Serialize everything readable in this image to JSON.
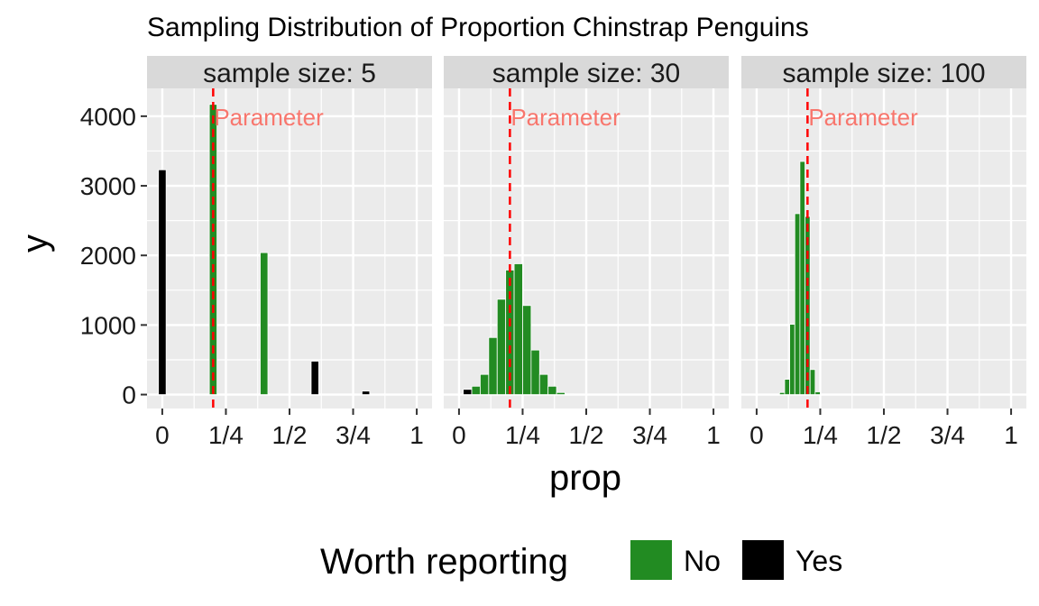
{
  "chart_data": {
    "type": "bar",
    "title": "Sampling Distribution of Proportion Chinstrap Penguins",
    "xlabel": "prop",
    "ylabel": "y",
    "x_ticks": [
      {
        "value": 0,
        "label": "0"
      },
      {
        "value": 0.25,
        "label": "1/4"
      },
      {
        "value": 0.5,
        "label": "1/2"
      },
      {
        "value": 0.75,
        "label": "3/4"
      },
      {
        "value": 1,
        "label": "1"
      }
    ],
    "y_ticks": [
      {
        "value": 0,
        "label": "0"
      },
      {
        "value": 1000,
        "label": "1000"
      },
      {
        "value": 2000,
        "label": "2000"
      },
      {
        "value": 3000,
        "label": "3000"
      },
      {
        "value": 4000,
        "label": "4000"
      }
    ],
    "xlim": [
      -0.06,
      1.06
    ],
    "ylim": [
      -200,
      4400
    ],
    "grid": true,
    "parameter": {
      "value": 0.2,
      "label": "Parameter",
      "color": "#ff0000",
      "label_color": "#f8766d"
    },
    "legend": {
      "title": "Worth reporting",
      "position": "bottom",
      "entries": [
        {
          "label": "No",
          "color": "#228b22"
        },
        {
          "label": "Yes",
          "color": "#000000"
        }
      ]
    },
    "panels": [
      {
        "strip": "sample  size: 5",
        "bar_width": 0.03,
        "bars": [
          {
            "x": 0.0,
            "y": 3230,
            "report": "Yes"
          },
          {
            "x": 0.2,
            "y": 4170,
            "report": "No"
          },
          {
            "x": 0.4,
            "y": 2040,
            "report": "No"
          },
          {
            "x": 0.6,
            "y": 480,
            "report": "Yes"
          },
          {
            "x": 0.8,
            "y": 50,
            "report": "Yes"
          },
          {
            "x": 1.0,
            "y": 3,
            "report": "Yes"
          }
        ]
      },
      {
        "strip": "sample  size: 30",
        "bar_width": 0.0333,
        "bars": [
          {
            "x": 0.0333,
            "y": 75,
            "report": "Yes"
          },
          {
            "x": 0.0667,
            "y": 120,
            "report": "No"
          },
          {
            "x": 0.1,
            "y": 290,
            "report": "No"
          },
          {
            "x": 0.1333,
            "y": 820,
            "report": "No"
          },
          {
            "x": 0.1667,
            "y": 1370,
            "report": "No"
          },
          {
            "x": 0.2,
            "y": 1790,
            "report": "No"
          },
          {
            "x": 0.2333,
            "y": 1880,
            "report": "No"
          },
          {
            "x": 0.2667,
            "y": 1280,
            "report": "No"
          },
          {
            "x": 0.3,
            "y": 640,
            "report": "No"
          },
          {
            "x": 0.3333,
            "y": 290,
            "report": "No"
          },
          {
            "x": 0.3667,
            "y": 120,
            "report": "No"
          },
          {
            "x": 0.4,
            "y": 30,
            "report": "No"
          },
          {
            "x": 0.4333,
            "y": 10,
            "report": "No"
          }
        ]
      },
      {
        "strip": "sample  size: 100",
        "bar_width": 0.02,
        "bars": [
          {
            "x": 0.1,
            "y": 30,
            "report": "No"
          },
          {
            "x": 0.12,
            "y": 220,
            "report": "No"
          },
          {
            "x": 0.14,
            "y": 1010,
            "report": "No"
          },
          {
            "x": 0.16,
            "y": 2600,
            "report": "No"
          },
          {
            "x": 0.18,
            "y": 3350,
            "report": "No"
          },
          {
            "x": 0.2,
            "y": 2560,
            "report": "No"
          },
          {
            "x": 0.22,
            "y": 360,
            "report": "No"
          },
          {
            "x": 0.24,
            "y": 40,
            "report": "No"
          }
        ]
      }
    ]
  }
}
